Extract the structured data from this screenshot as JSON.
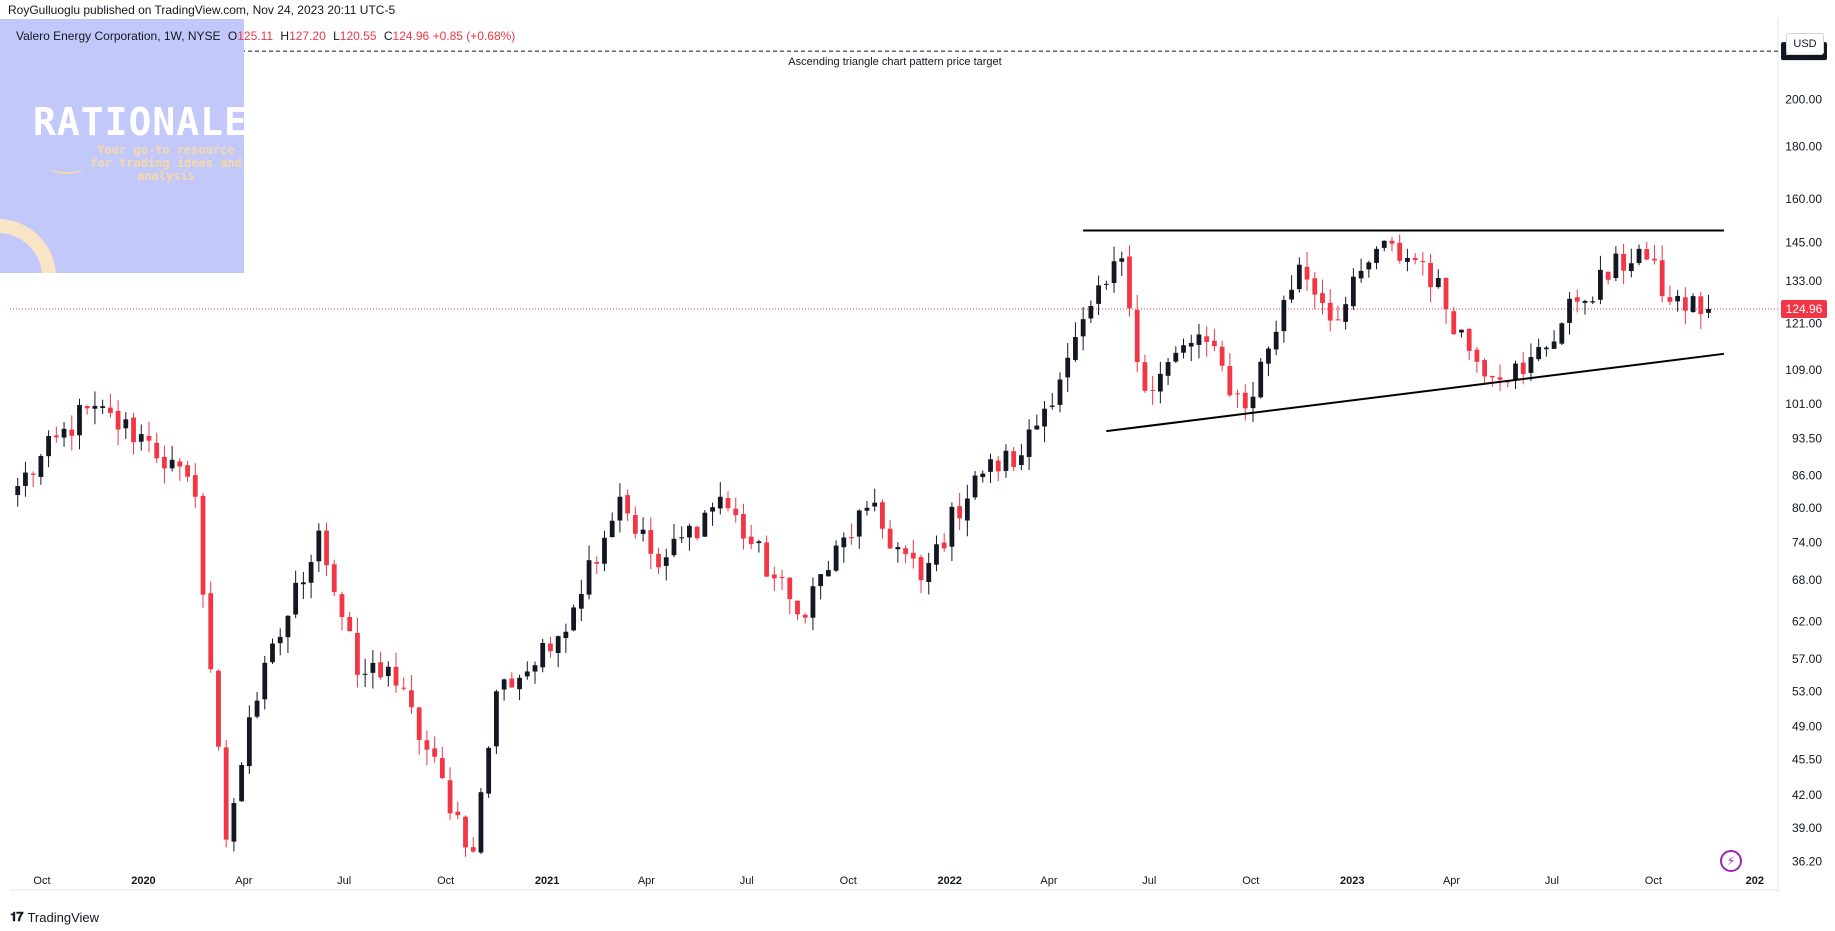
{
  "header": {
    "publish_line": "RoyGulluoglu published on TradingView.com, Nov 24, 2023 20:11 UTC-5"
  },
  "legend": {
    "symbol": "Valero Energy Corporation, 1W, NYSE",
    "open_label": "O",
    "open": "125.11",
    "high_label": "H",
    "high": "127.20",
    "low_label": "L",
    "low": "120.55",
    "close_label": "C",
    "close": "124.96",
    "change": "+0.85 (+0.68%)"
  },
  "branding": {
    "title": "RATIONALE",
    "tagline": "Your go-to resource for trading ideas and analysis",
    "colors": {
      "panel": "#c3c8fb",
      "title": "#ffffff",
      "tagline": "#f4d9a6"
    }
  },
  "price_axis": {
    "currency": "USD",
    "ticks": [
      "200.00",
      "180.00",
      "160.00",
      "145.00",
      "133.00",
      "121.00",
      "109.00",
      "101.00",
      "93.50",
      "86.00",
      "80.00",
      "74.00",
      "68.00",
      "62.00",
      "57.00",
      "53.00",
      "49.00",
      "45.50",
      "42.00",
      "39.00",
      "36.20"
    ],
    "last_price": "124.96",
    "target_price": "222.80"
  },
  "time_axis": {
    "ticks": [
      {
        "label": "Oct",
        "date": "2019-10-01",
        "bold": false
      },
      {
        "label": "2020",
        "date": "2020-01-01",
        "bold": true
      },
      {
        "label": "Apr",
        "date": "2020-04-01",
        "bold": false
      },
      {
        "label": "Jul",
        "date": "2020-07-01",
        "bold": false
      },
      {
        "label": "Oct",
        "date": "2020-10-01",
        "bold": false
      },
      {
        "label": "2021",
        "date": "2021-01-01",
        "bold": true
      },
      {
        "label": "Apr",
        "date": "2021-04-01",
        "bold": false
      },
      {
        "label": "Jul",
        "date": "2021-07-01",
        "bold": false
      },
      {
        "label": "Oct",
        "date": "2021-10-01",
        "bold": false
      },
      {
        "label": "2022",
        "date": "2022-01-01",
        "bold": true
      },
      {
        "label": "Apr",
        "date": "2022-04-01",
        "bold": false
      },
      {
        "label": "Jul",
        "date": "2022-07-01",
        "bold": false
      },
      {
        "label": "Oct",
        "date": "2022-10-01",
        "bold": false
      },
      {
        "label": "2023",
        "date": "2023-01-01",
        "bold": true
      },
      {
        "label": "Apr",
        "date": "2023-04-01",
        "bold": false
      },
      {
        "label": "Jul",
        "date": "2023-07-01",
        "bold": false
      },
      {
        "label": "Oct",
        "date": "2023-10-01",
        "bold": false
      },
      {
        "label": "202",
        "date": "2024-01-01",
        "bold": true
      }
    ]
  },
  "annotation": {
    "target_label": "Ascending triangle chart pattern price target"
  },
  "footer": {
    "brand": "TradingView"
  },
  "chart_data": {
    "type": "candlestick",
    "symbol": "Valero Energy Corporation",
    "interval": "1W",
    "exchange": "NYSE",
    "scale": "log",
    "ylim": [
      35.5,
      240
    ],
    "xlim": [
      "2019-09-02",
      "2024-01-22"
    ],
    "up_color": "#131722",
    "down_color": "#f23645",
    "last_close": 124.96,
    "key_points": [
      {
        "date": "2019-09-09",
        "close": 84
      },
      {
        "date": "2019-11-11",
        "close": 100
      },
      {
        "date": "2020-01-06",
        "close": 93
      },
      {
        "date": "2020-02-17",
        "close": 82
      },
      {
        "date": "2020-03-16",
        "close": 38
      },
      {
        "date": "2020-04-06",
        "close": 50
      },
      {
        "date": "2020-06-08",
        "close": 76
      },
      {
        "date": "2020-07-13",
        "close": 55
      },
      {
        "date": "2020-08-10",
        "close": 56
      },
      {
        "date": "2020-10-26",
        "close": 37
      },
      {
        "date": "2020-11-16",
        "close": 53
      },
      {
        "date": "2021-01-04",
        "close": 58
      },
      {
        "date": "2021-03-08",
        "close": 82
      },
      {
        "date": "2021-04-12",
        "close": 70
      },
      {
        "date": "2021-06-07",
        "close": 82
      },
      {
        "date": "2021-08-16",
        "close": 63
      },
      {
        "date": "2021-10-18",
        "close": 80
      },
      {
        "date": "2021-12-06",
        "close": 68
      },
      {
        "date": "2022-01-24",
        "close": 86
      },
      {
        "date": "2022-03-07",
        "close": 90
      },
      {
        "date": "2022-04-18",
        "close": 112
      },
      {
        "date": "2022-06-06",
        "close": 140
      },
      {
        "date": "2022-06-27",
        "close": 104
      },
      {
        "date": "2022-08-15",
        "close": 118
      },
      {
        "date": "2022-09-26",
        "close": 100
      },
      {
        "date": "2022-11-14",
        "close": 138
      },
      {
        "date": "2022-12-19",
        "close": 122
      },
      {
        "date": "2023-01-23",
        "close": 143
      },
      {
        "date": "2023-03-06",
        "close": 139
      },
      {
        "date": "2023-04-24",
        "close": 111
      },
      {
        "date": "2023-06-05",
        "close": 108
      },
      {
        "date": "2023-07-24",
        "close": 127
      },
      {
        "date": "2023-09-18",
        "close": 143
      },
      {
        "date": "2023-10-16",
        "close": 127
      },
      {
        "date": "2023-11-20",
        "close": 124.96
      }
    ],
    "annotations": [
      {
        "type": "hline",
        "style": "dashed",
        "y": 222.8,
        "label": "Ascending triangle chart pattern price target"
      },
      {
        "type": "trendline",
        "role": "resistance",
        "from": {
          "date": "2022-05-02",
          "price": 149
        },
        "to": {
          "date": "2023-12-04",
          "price": 149
        }
      },
      {
        "type": "trendline",
        "role": "support",
        "from": {
          "date": "2022-05-23",
          "price": 95
        },
        "to": {
          "date": "2023-12-04",
          "price": 113
        }
      },
      {
        "type": "hline",
        "style": "dotted",
        "y": 124.96,
        "color": "#f23645"
      }
    ]
  }
}
